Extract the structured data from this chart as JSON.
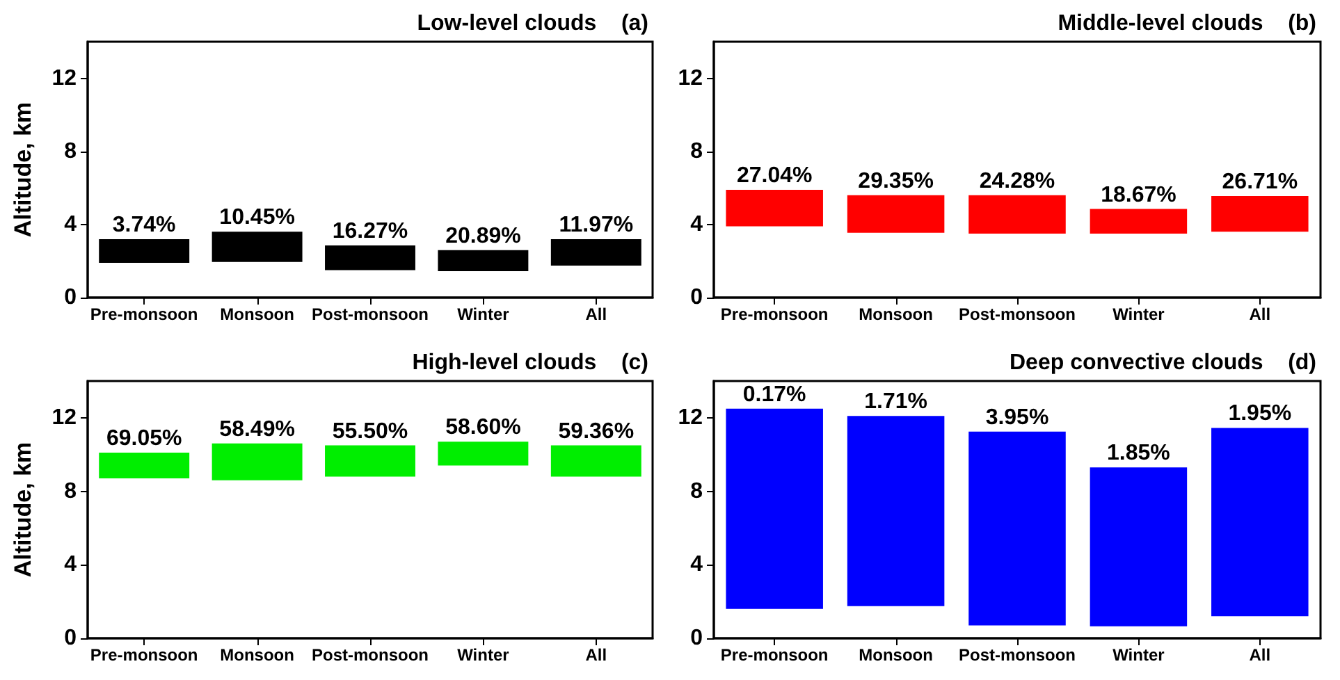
{
  "chart_data": [
    {
      "type": "bar",
      "title": "Low-level clouds    (a)",
      "ylabel": "Altitude, km",
      "categories": [
        "Pre-monsoon",
        "Monsoon",
        "Post-monsoon",
        "Winter",
        "All"
      ],
      "base": [
        1.9,
        1.95,
        1.5,
        1.45,
        1.75
      ],
      "values": [
        1.3,
        1.65,
        1.35,
        1.15,
        1.45
      ],
      "color": "#000000",
      "ylim": [
        0,
        14
      ],
      "yticks": [
        0,
        4,
        8,
        12
      ],
      "grid": false,
      "annotations": [
        {
          "text": "3.74%",
          "x": "Pre-monsoon",
          "y": 3.2
        },
        {
          "text": "10.45%",
          "x": "Monsoon",
          "y": 3.6
        },
        {
          "text": "16.27%",
          "x": "Post-monsoon",
          "y": 2.85
        },
        {
          "text": "20.89%",
          "x": "Winter",
          "y": 2.6
        },
        {
          "text": "11.97%",
          "x": "All",
          "y": 3.2
        }
      ]
    },
    {
      "type": "bar",
      "title": "Middle-level clouds    (b)",
      "categories": [
        "Pre-monsoon",
        "Monsoon",
        "Post-monsoon",
        "Winter",
        "All"
      ],
      "base": [
        3.9,
        3.55,
        3.5,
        3.5,
        3.6
      ],
      "values": [
        2.0,
        2.05,
        2.1,
        1.35,
        1.95
      ],
      "color": "#ff0000",
      "ylim": [
        0,
        14
      ],
      "yticks": [
        0,
        4,
        8,
        12
      ],
      "grid": false,
      "annotations": [
        {
          "text": "27.04%",
          "x": "Pre-monsoon",
          "y": 5.9
        },
        {
          "text": "29.35%",
          "x": "Monsoon",
          "y": 5.6
        },
        {
          "text": "24.28%",
          "x": "Post-monsoon",
          "y": 5.6
        },
        {
          "text": "18.67%",
          "x": "Winter",
          "y": 4.85
        },
        {
          "text": "26.71%",
          "x": "All",
          "y": 5.55
        }
      ]
    },
    {
      "type": "bar",
      "title": "High-level clouds    (c)",
      "ylabel": "Altitude, km",
      "categories": [
        "Pre-monsoon",
        "Monsoon",
        "Post-monsoon",
        "Winter",
        "All"
      ],
      "base": [
        8.7,
        8.6,
        8.8,
        9.4,
        8.8
      ],
      "values": [
        1.4,
        2.0,
        1.7,
        1.3,
        1.7
      ],
      "color": "#00ee00",
      "ylim": [
        0,
        14
      ],
      "yticks": [
        0,
        4,
        8,
        12
      ],
      "grid": false,
      "annotations": [
        {
          "text": "69.05%",
          "x": "Pre-monsoon",
          "y": 10.1
        },
        {
          "text": "58.49%",
          "x": "Monsoon",
          "y": 10.6
        },
        {
          "text": "55.50%",
          "x": "Post-monsoon",
          "y": 10.5
        },
        {
          "text": "58.60%",
          "x": "Winter",
          "y": 10.7
        },
        {
          "text": "59.36%",
          "x": "All",
          "y": 10.5
        }
      ]
    },
    {
      "type": "bar",
      "title": "Deep convective clouds    (d)",
      "categories": [
        "Pre-monsoon",
        "Monsoon",
        "Post-monsoon",
        "Winter",
        "All"
      ],
      "base": [
        1.6,
        1.75,
        0.7,
        0.65,
        1.2
      ],
      "values": [
        10.9,
        10.35,
        10.55,
        8.65,
        10.25
      ],
      "color": "#0000ff",
      "ylim": [
        0,
        14
      ],
      "yticks": [
        0,
        4,
        8,
        12
      ],
      "grid": false,
      "annotations": [
        {
          "text": "0.17%",
          "x": "Pre-monsoon",
          "y": 12.5
        },
        {
          "text": "1.71%",
          "x": "Monsoon",
          "y": 12.1
        },
        {
          "text": "3.95%",
          "x": "Post-monsoon",
          "y": 11.25
        },
        {
          "text": "1.85%",
          "x": "Winter",
          "y": 9.3
        },
        {
          "text": "1.95%",
          "x": "All",
          "y": 11.45
        }
      ]
    }
  ]
}
